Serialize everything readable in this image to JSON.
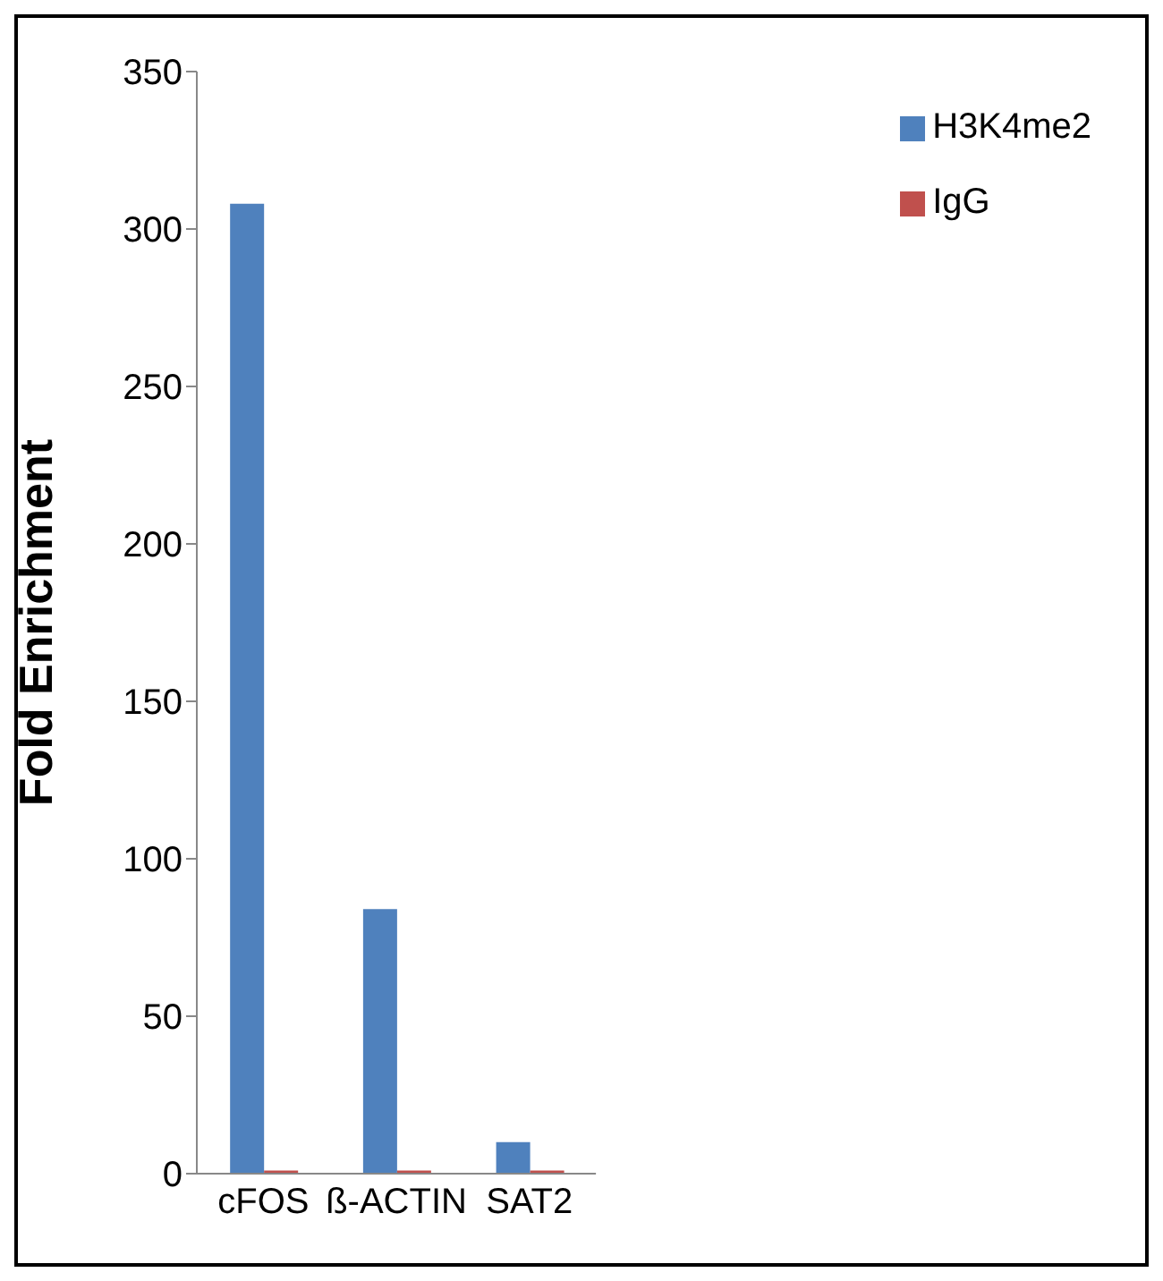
{
  "chart_data": {
    "type": "bar",
    "ylabel": "Fold Enrichment",
    "categories": [
      "cFOS",
      "ß-ACTIN",
      "SAT2"
    ],
    "series": [
      {
        "name": "H3K4me2",
        "color": "#4f81bd",
        "values": [
          308,
          84,
          10
        ]
      },
      {
        "name": "IgG",
        "color": "#c0504d",
        "values": [
          1,
          1,
          1
        ]
      }
    ],
    "ylim": [
      0,
      350
    ],
    "yticks": [
      0,
      50,
      100,
      150,
      200,
      250,
      300,
      350
    ],
    "grid": false,
    "legend": "top right"
  }
}
